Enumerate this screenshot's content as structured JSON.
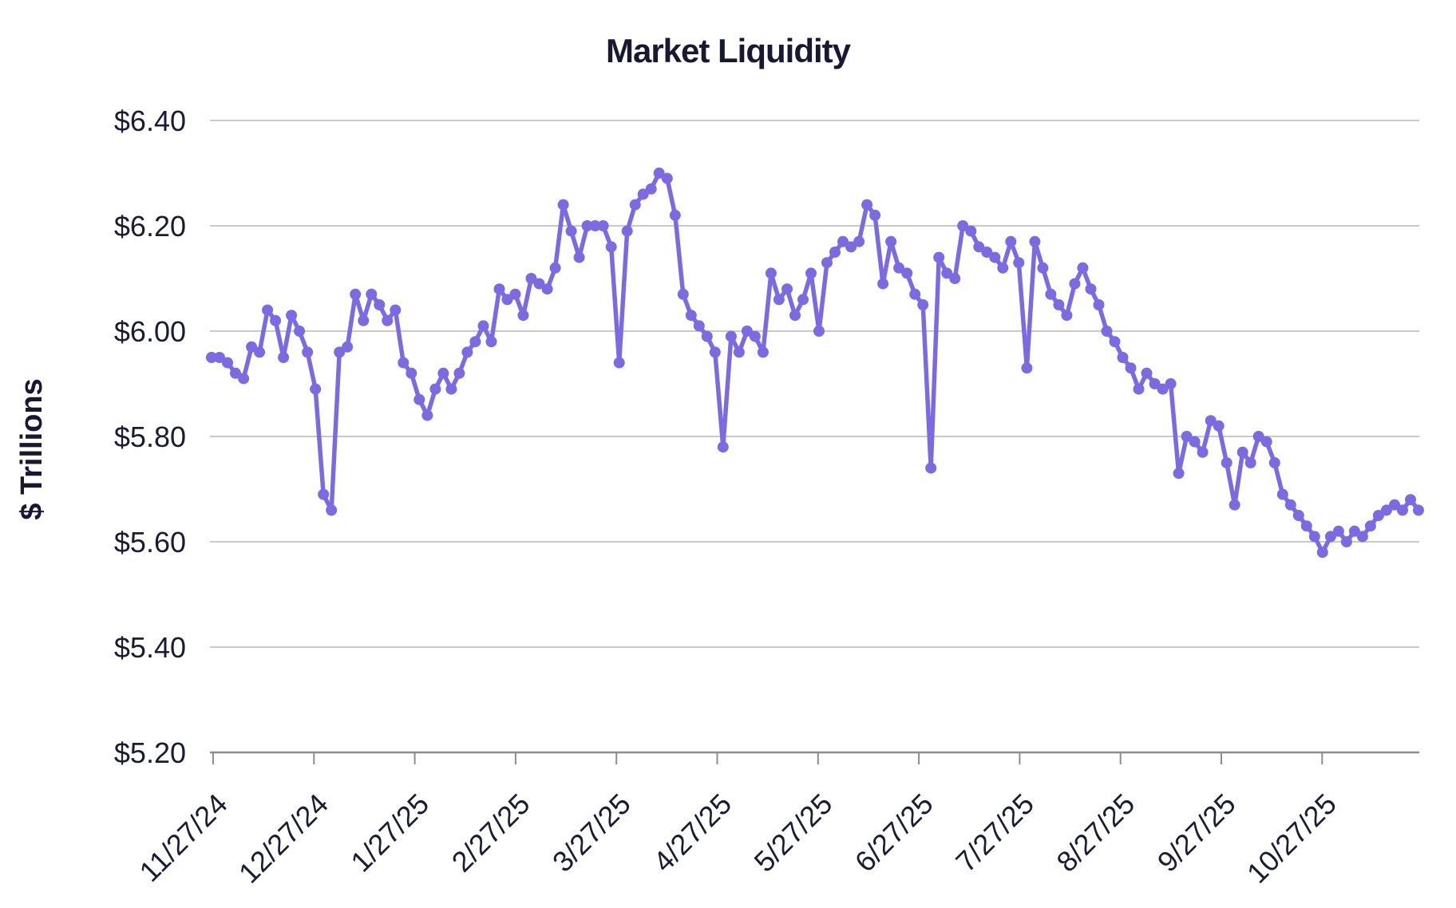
{
  "page": {
    "background": "#ffffff"
  },
  "colors": {
    "line": "#7c6ae2",
    "marker": "#7c6ae2",
    "title_text": "#181833",
    "tick_text": "#1b1b36",
    "grid": "#c9c9c9",
    "axis": "#8c8c94"
  },
  "chart_data": {
    "type": "line",
    "title": "Market Liquidity",
    "xlabel": "",
    "ylabel": "$ Trillions",
    "ylim": [
      5.2,
      6.4
    ],
    "grid": true,
    "legend": false,
    "marker": "circle",
    "line_color": "#7c6ae2",
    "y_ticks": [
      6.4,
      6.2,
      6.0,
      5.8,
      5.6,
      5.4,
      5.2
    ],
    "y_tick_labels": [
      "$6.40",
      "$6.20",
      "$6.00",
      "$5.80",
      "$5.60",
      "$5.40",
      "$5.20"
    ],
    "x_tick_labels": [
      "11/27/24",
      "12/27/24",
      "1/27/25",
      "2/27/25",
      "3/27/25",
      "4/27/25",
      "5/27/25",
      "6/27/25",
      "7/27/25",
      "8/27/25",
      "9/27/25",
      "10/27/25"
    ],
    "series": [
      {
        "name": "Market Liquidity",
        "values": [
          5.95,
          5.95,
          5.94,
          5.92,
          5.91,
          5.97,
          5.96,
          6.04,
          6.02,
          5.95,
          6.03,
          6.0,
          5.96,
          5.89,
          5.69,
          5.66,
          5.96,
          5.97,
          6.07,
          6.02,
          6.07,
          6.05,
          6.02,
          6.04,
          5.94,
          5.92,
          5.87,
          5.84,
          5.89,
          5.92,
          5.89,
          5.92,
          5.96,
          5.98,
          6.01,
          5.98,
          6.08,
          6.06,
          6.07,
          6.03,
          6.1,
          6.09,
          6.08,
          6.12,
          6.24,
          6.19,
          6.14,
          6.2,
          6.2,
          6.2,
          6.16,
          5.94,
          6.19,
          6.24,
          6.26,
          6.27,
          6.3,
          6.29,
          6.22,
          6.07,
          6.03,
          6.01,
          5.99,
          5.96,
          5.78,
          5.99,
          5.96,
          6.0,
          5.99,
          5.96,
          6.11,
          6.06,
          6.08,
          6.03,
          6.06,
          6.11,
          6.0,
          6.13,
          6.15,
          6.17,
          6.16,
          6.17,
          6.24,
          6.22,
          6.09,
          6.17,
          6.12,
          6.11,
          6.07,
          6.05,
          5.74,
          6.14,
          6.11,
          6.1,
          6.2,
          6.19,
          6.16,
          6.15,
          6.14,
          6.12,
          6.17,
          6.13,
          5.93,
          6.17,
          6.12,
          6.07,
          6.05,
          6.03,
          6.09,
          6.12,
          6.08,
          6.05,
          6.0,
          5.98,
          5.95,
          5.93,
          5.89,
          5.92,
          5.9,
          5.89,
          5.9,
          5.73,
          5.8,
          5.79,
          5.77,
          5.83,
          5.82,
          5.75,
          5.67,
          5.77,
          5.75,
          5.8,
          5.79,
          5.75,
          5.69,
          5.67,
          5.65,
          5.63,
          5.61,
          5.58,
          5.61,
          5.62,
          5.6,
          5.62,
          5.61,
          5.63,
          5.65,
          5.66,
          5.67,
          5.66,
          5.68,
          5.66
        ]
      }
    ]
  }
}
